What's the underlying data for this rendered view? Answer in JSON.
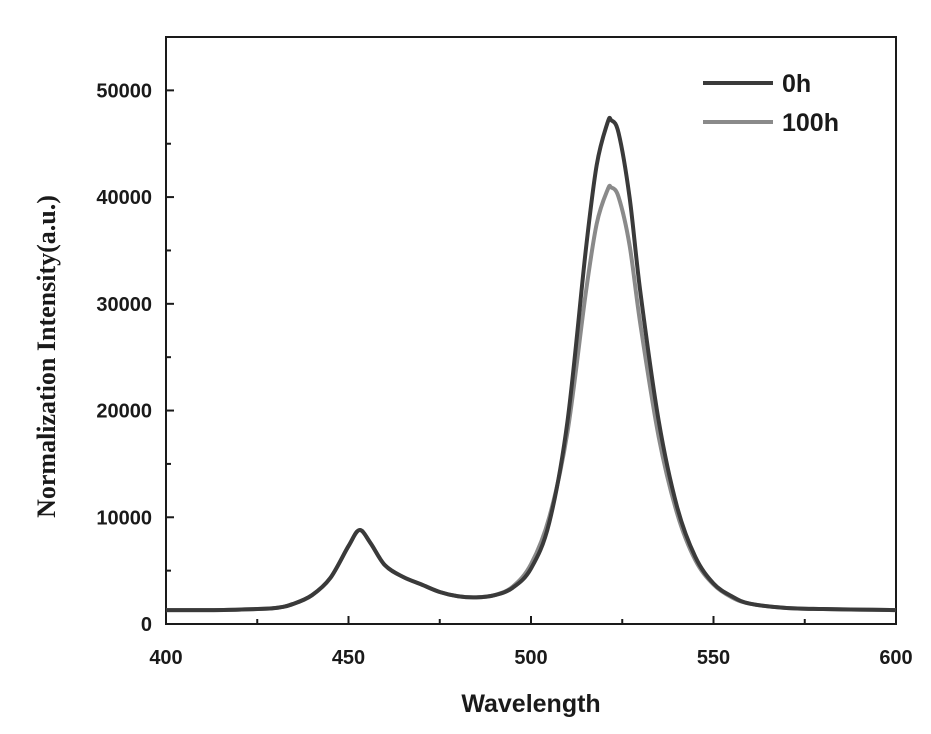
{
  "chart_data": {
    "type": "line",
    "title": "",
    "xlabel": "Wavelength",
    "ylabel": "Normalization Intensity(a.u.)",
    "xlim": [
      400,
      600
    ],
    "ylim": [
      0,
      55000
    ],
    "xticks": [
      400,
      450,
      500,
      550,
      600
    ],
    "xtick_labels": [
      "400",
      "450",
      "500",
      "550",
      "600"
    ],
    "yticks": [
      0,
      10000,
      20000,
      30000,
      40000,
      50000
    ],
    "ytick_labels": [
      "0",
      "10000",
      "20000",
      "30000",
      "40000",
      "50000"
    ],
    "grid": false,
    "legend_position": "top-right",
    "x": [
      400,
      410,
      420,
      430,
      435,
      440,
      445,
      450,
      453,
      456,
      460,
      465,
      470,
      475,
      480,
      485,
      490,
      495,
      500,
      505,
      510,
      515,
      518,
      521,
      522,
      524,
      527,
      530,
      535,
      540,
      545,
      550,
      555,
      560,
      570,
      580,
      590,
      600
    ],
    "series": [
      {
        "name": "0h",
        "color": "#3a3a3a",
        "values": [
          1300,
          1300,
          1350,
          1500,
          1900,
          2700,
          4300,
          7300,
          8800,
          7600,
          5500,
          4400,
          3700,
          3000,
          2600,
          2500,
          2700,
          3400,
          5200,
          9500,
          19000,
          35000,
          43000,
          47000,
          47200,
          46000,
          40000,
          31000,
          19000,
          11000,
          6300,
          3800,
          2600,
          1900,
          1500,
          1400,
          1350,
          1300
        ]
      },
      {
        "name": "100h",
        "color": "#8a8a8a",
        "values": [
          1300,
          1300,
          1350,
          1500,
          1900,
          2700,
          4300,
          7300,
          8800,
          7600,
          5500,
          4400,
          3700,
          3000,
          2600,
          2500,
          2700,
          3500,
          5600,
          10000,
          18000,
          31000,
          37500,
          40700,
          40900,
          40000,
          35500,
          28000,
          17500,
          10400,
          6000,
          3700,
          2500,
          1900,
          1500,
          1400,
          1350,
          1300
        ]
      }
    ]
  }
}
